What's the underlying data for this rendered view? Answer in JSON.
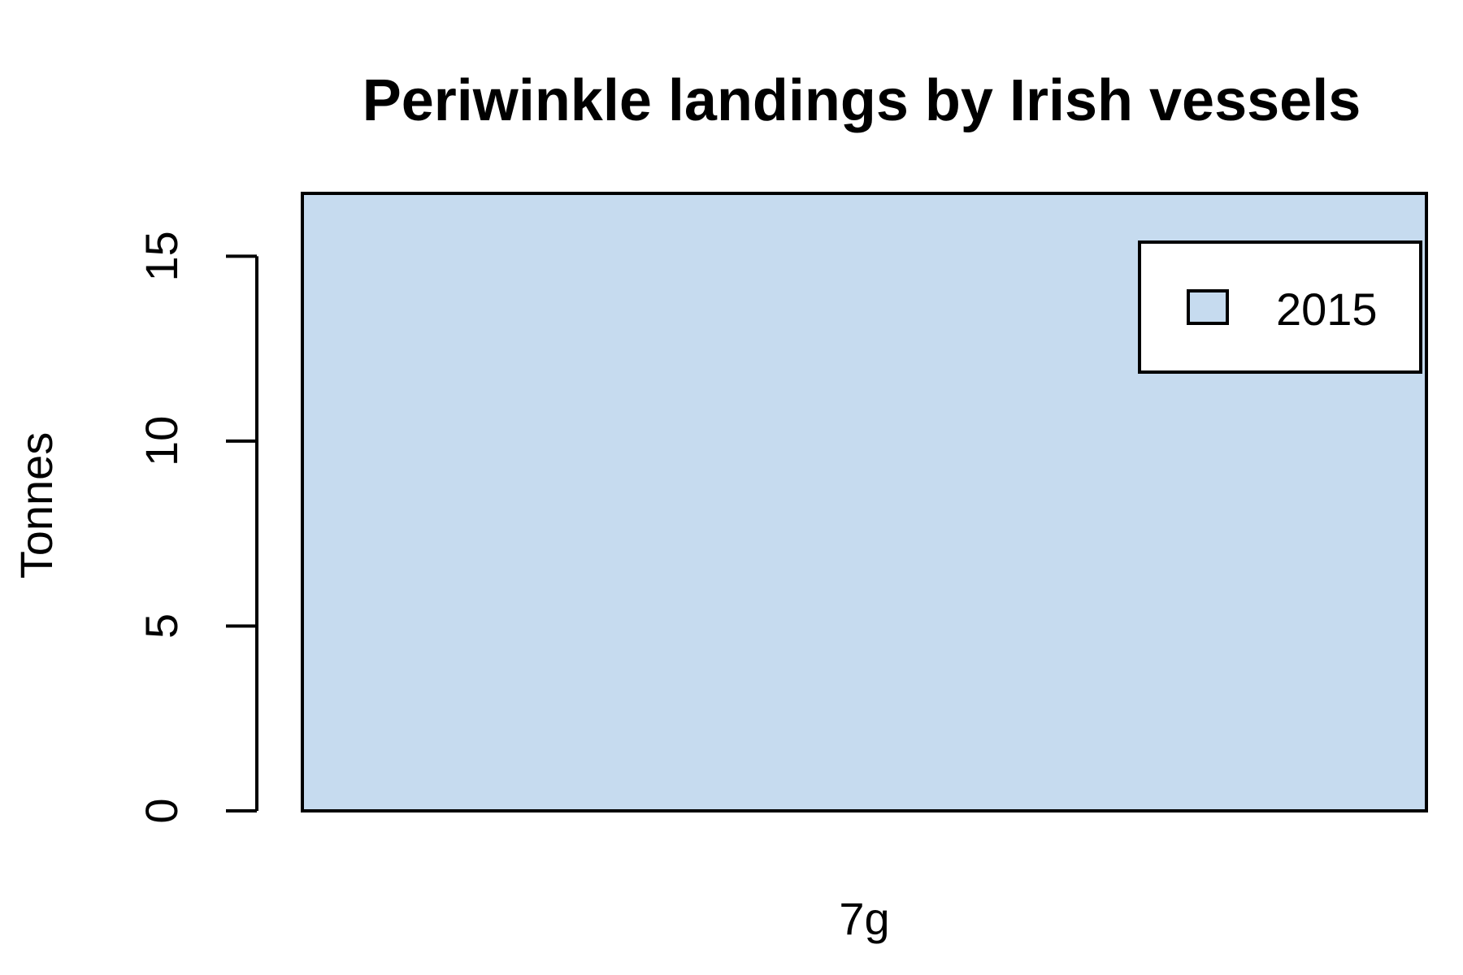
{
  "chart_data": {
    "type": "bar",
    "title": "Periwinkle landings by Irish vessels",
    "xlabel": "",
    "ylabel": "Tonnes",
    "categories": [
      "7g"
    ],
    "series": [
      {
        "name": "2015",
        "values": [
          16.7
        ],
        "color": "#c6dbef"
      }
    ],
    "ylim": [
      0,
      16.7
    ],
    "yticks": [
      0,
      5,
      10,
      15
    ],
    "ytick_labels": [
      "0",
      "5",
      "10",
      "15"
    ],
    "grid": false,
    "legend": {
      "position": "top-right",
      "entries": [
        "2015"
      ]
    }
  }
}
